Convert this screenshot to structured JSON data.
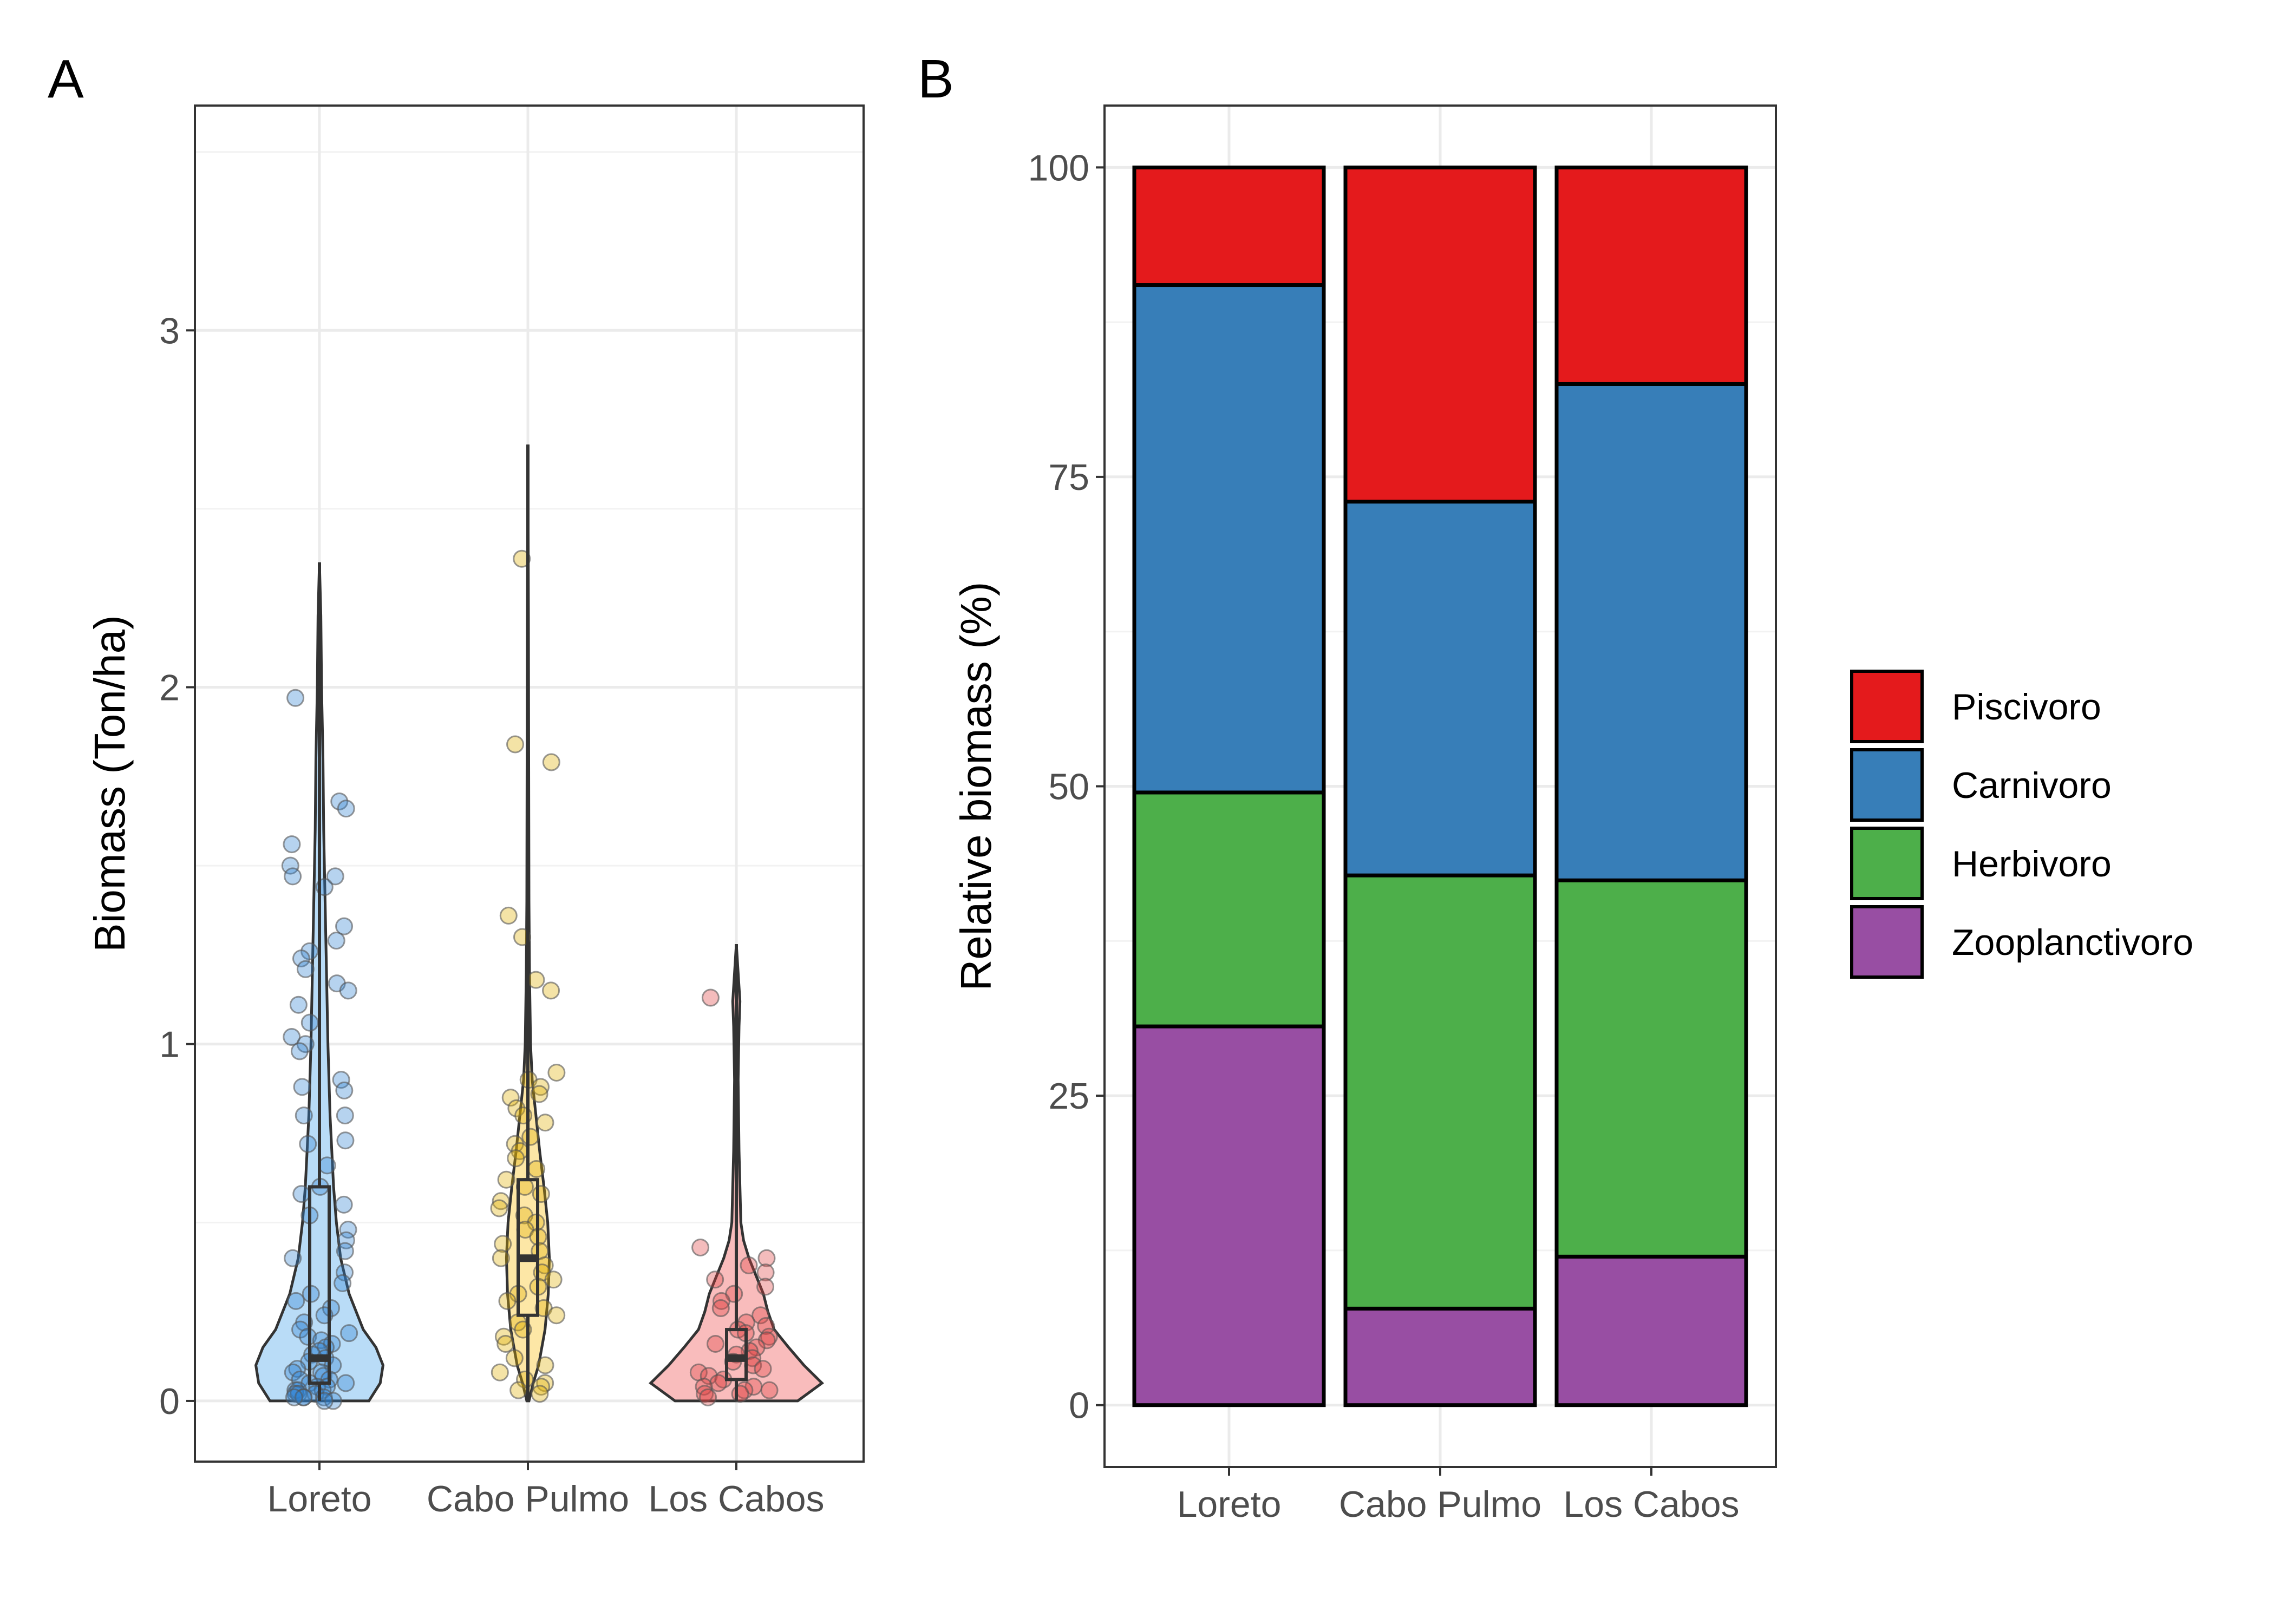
{
  "chart_data": [
    {
      "panel": "A",
      "type": "violin",
      "ylabel": "Biomass (Ton/ha)",
      "ylim": [
        -0.17,
        3.63
      ],
      "yticks": [
        0,
        1,
        2,
        3
      ],
      "categories": [
        "Loreto",
        "Cabo Pulmo",
        "Los Cabos"
      ],
      "grid": true,
      "colors": [
        "#b9dcf7",
        "#fde7a6",
        "#f9bcbc"
      ],
      "point_colors": [
        "#2f80d0",
        "#e0b000",
        "#e04040"
      ],
      "box": [
        {
          "q1": 0.05,
          "median": 0.12,
          "q3": 0.6,
          "min": 0.0,
          "max": 2.35
        },
        {
          "q1": 0.24,
          "median": 0.4,
          "q3": 0.62,
          "min": 0.0,
          "max": 2.68
        },
        {
          "q1": 0.06,
          "median": 0.12,
          "q3": 0.2,
          "min": 0.0,
          "max": 1.28
        }
      ],
      "points": [
        [
          1.97,
          1.68,
          1.66,
          1.56,
          1.5,
          1.47,
          1.47,
          1.44,
          1.33,
          1.29,
          1.26,
          1.24,
          1.21,
          1.17,
          1.15,
          1.11,
          1.06,
          1.02,
          1.0,
          0.98,
          0.9,
          0.88,
          0.87,
          0.8,
          0.8,
          0.73,
          0.72,
          0.66,
          0.6,
          0.58,
          0.55,
          0.52,
          0.48,
          0.45,
          0.42,
          0.4,
          0.36,
          0.33,
          0.3,
          0.28,
          0.26,
          0.24,
          0.22,
          0.2,
          0.19,
          0.18,
          0.17,
          0.16,
          0.15,
          0.14,
          0.13,
          0.12,
          0.11,
          0.1,
          0.09,
          0.08,
          0.08,
          0.07,
          0.06,
          0.06,
          0.05,
          0.05,
          0.04,
          0.04,
          0.03,
          0.03,
          0.03,
          0.02,
          0.02,
          0.02,
          0.01,
          0.01,
          0.01,
          0.01,
          0.0,
          0.0
        ],
        [
          2.36,
          1.84,
          1.79,
          1.36,
          1.3,
          1.18,
          1.15,
          0.92,
          0.9,
          0.88,
          0.86,
          0.85,
          0.82,
          0.8,
          0.78,
          0.74,
          0.72,
          0.7,
          0.68,
          0.65,
          0.62,
          0.6,
          0.58,
          0.56,
          0.54,
          0.52,
          0.5,
          0.48,
          0.46,
          0.44,
          0.42,
          0.4,
          0.38,
          0.36,
          0.34,
          0.32,
          0.3,
          0.28,
          0.26,
          0.24,
          0.22,
          0.2,
          0.18,
          0.16,
          0.12,
          0.1,
          0.08,
          0.06,
          0.05,
          0.04,
          0.03,
          0.02
        ],
        [
          1.13,
          0.43,
          0.4,
          0.38,
          0.36,
          0.34,
          0.32,
          0.3,
          0.28,
          0.26,
          0.24,
          0.22,
          0.21,
          0.2,
          0.19,
          0.18,
          0.17,
          0.16,
          0.15,
          0.14,
          0.13,
          0.12,
          0.11,
          0.1,
          0.09,
          0.08,
          0.07,
          0.06,
          0.05,
          0.04,
          0.04,
          0.03,
          0.03,
          0.02,
          0.02,
          0.01
        ]
      ],
      "density": [
        [
          [
            0.0,
            0.7
          ],
          [
            0.05,
            0.86
          ],
          [
            0.1,
            0.9
          ],
          [
            0.15,
            0.8
          ],
          [
            0.2,
            0.62
          ],
          [
            0.3,
            0.42
          ],
          [
            0.4,
            0.3
          ],
          [
            0.5,
            0.24
          ],
          [
            0.6,
            0.2
          ],
          [
            0.8,
            0.15
          ],
          [
            1.0,
            0.12
          ],
          [
            1.2,
            0.1
          ],
          [
            1.4,
            0.08
          ],
          [
            1.6,
            0.06
          ],
          [
            1.8,
            0.05
          ],
          [
            2.0,
            0.03
          ],
          [
            2.2,
            0.02
          ],
          [
            2.35,
            0.0
          ]
        ],
        [
          [
            0.0,
            0.02
          ],
          [
            0.05,
            0.1
          ],
          [
            0.1,
            0.2
          ],
          [
            0.2,
            0.32
          ],
          [
            0.3,
            0.38
          ],
          [
            0.4,
            0.4
          ],
          [
            0.5,
            0.37
          ],
          [
            0.6,
            0.3
          ],
          [
            0.7,
            0.22
          ],
          [
            0.8,
            0.15
          ],
          [
            0.9,
            0.08
          ],
          [
            1.0,
            0.05
          ],
          [
            1.2,
            0.03
          ],
          [
            1.4,
            0.02
          ],
          [
            1.8,
            0.015
          ],
          [
            2.2,
            0.01
          ],
          [
            2.68,
            0.0
          ]
        ],
        [
          [
            0.0,
            0.68
          ],
          [
            0.05,
            0.95
          ],
          [
            0.1,
            0.75
          ],
          [
            0.15,
            0.58
          ],
          [
            0.2,
            0.42
          ],
          [
            0.25,
            0.35
          ],
          [
            0.3,
            0.3
          ],
          [
            0.35,
            0.22
          ],
          [
            0.4,
            0.14
          ],
          [
            0.45,
            0.08
          ],
          [
            0.5,
            0.05
          ],
          [
            0.7,
            0.03
          ],
          [
            0.9,
            0.02
          ],
          [
            1.05,
            0.03
          ],
          [
            1.12,
            0.04
          ],
          [
            1.2,
            0.02
          ],
          [
            1.28,
            0.0
          ]
        ]
      ]
    },
    {
      "panel": "B",
      "type": "bar",
      "stacked": true,
      "ylabel": "Relative biomass (%)",
      "ylim": [
        -5,
        105
      ],
      "yticks": [
        0,
        25,
        50,
        75,
        100
      ],
      "categories": [
        "Loreto",
        "Cabo Pulmo",
        "Los Cabos"
      ],
      "grid": true,
      "legend_position": "right",
      "series": [
        {
          "name": "Zooplanctivoro",
          "color": "#984ea3",
          "values": [
            30.6,
            7.8,
            12.0
          ]
        },
        {
          "name": "Herbivoro",
          "color": "#4daf4a",
          "values": [
            18.9,
            35.0,
            30.4
          ]
        },
        {
          "name": "Carnivoro",
          "color": "#377eb8",
          "values": [
            41.0,
            30.2,
            40.1
          ]
        },
        {
          "name": "Piscivoro",
          "color": "#e41a1c",
          "values": [
            9.5,
            27.0,
            17.5
          ]
        }
      ],
      "legend_order": [
        "Piscivoro",
        "Carnivoro",
        "Herbivoro",
        "Zooplanctivoro"
      ]
    }
  ]
}
